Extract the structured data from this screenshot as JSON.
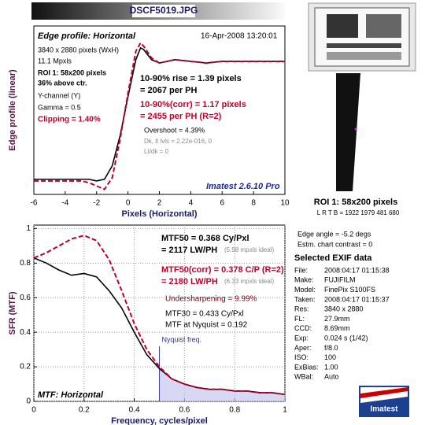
{
  "header": {
    "title": "DSCF5019.JPG"
  },
  "chart_data": [
    {
      "type": "line",
      "title": "Edge profile: Horizontal",
      "xlabel": "Pixels (Horizontal)",
      "ylabel": "Edge profile (linear)",
      "x": [
        -6,
        -5,
        -4,
        -3,
        -2.5,
        -2,
        -1.5,
        -1,
        -0.5,
        0,
        0.5,
        0.8,
        1,
        1.5,
        2,
        3,
        4,
        5,
        6,
        7,
        8,
        9,
        10
      ],
      "series": [
        {
          "color": "#000000",
          "dash": false,
          "values": [
            0.09,
            0.09,
            0.09,
            0.09,
            0.09,
            0.08,
            0.09,
            0.17,
            0.35,
            0.58,
            0.8,
            0.87,
            0.86,
            0.8,
            0.78,
            0.8,
            0.79,
            0.78,
            0.79,
            0.79,
            0.79,
            0.79,
            0.79
          ]
        },
        {
          "color": "#c0002a",
          "dash": true,
          "values": [
            0.08,
            0.08,
            0.08,
            0.08,
            0.07,
            0.05,
            0.03,
            0.1,
            0.33,
            0.6,
            0.85,
            0.9,
            0.88,
            0.81,
            0.78,
            0.8,
            0.79,
            0.78,
            0.79,
            0.79,
            0.79,
            0.79,
            0.79
          ]
        }
      ],
      "xlim": [
        -6,
        10
      ],
      "xticks": [
        -6,
        -4,
        -2,
        0,
        2,
        4,
        6,
        8,
        10
      ],
      "ylim": [
        0,
        1
      ],
      "grid": false,
      "annotations": [
        "16-Apr-2008 13:20:01",
        "3840 x 2880 pixels (WxH)",
        "11.1 Mpxls",
        "ROI 1:  58x200 pixels",
        "36% above ctr.",
        "Y-channel (Y)",
        "Gamma = 0.5",
        "Clipping =  1.40%",
        "10-90% rise = 1.39 pixels",
        "= 2067 per PH",
        "10-90%(corr) = 1.17 pixels",
        "= 2455 per PH  (R=2)",
        "Overshoot = 4.39%",
        "Dk, lt lvls = 2.22e-016, 0",
        "Lt/dk = 0",
        "Imatest 2.6.10 Pro"
      ]
    },
    {
      "type": "line",
      "title": "MTF: Horizontal",
      "xlabel": "Frequency, cycles/pixel",
      "ylabel": "SFR (MTF)",
      "x": [
        0,
        0.05,
        0.1,
        0.15,
        0.2,
        0.25,
        0.3,
        0.35,
        0.4,
        0.45,
        0.5,
        0.55,
        0.6,
        0.65,
        0.7,
        0.75,
        0.8,
        0.85,
        0.9,
        0.95,
        1
      ],
      "series": [
        {
          "color": "#000000",
          "dash": false,
          "values": [
            0.83,
            0.8,
            0.76,
            0.73,
            0.74,
            0.72,
            0.64,
            0.54,
            0.4,
            0.27,
            0.19,
            0.13,
            0.1,
            0.08,
            0.07,
            0.07,
            0.06,
            0.06,
            0.05,
            0.05,
            0.04
          ]
        },
        {
          "color": "#c0002a",
          "dash": true,
          "values": [
            0.83,
            0.86,
            0.9,
            0.94,
            0.96,
            0.93,
            0.82,
            0.64,
            0.45,
            0.3,
            0.2,
            0.13,
            0.1,
            0.08,
            0.07,
            0.07,
            0.06,
            0.06,
            0.05,
            0.05,
            0.04
          ]
        }
      ],
      "xlim": [
        0,
        1
      ],
      "xticks": [
        0,
        0.2,
        0.4,
        0.6,
        0.8,
        1
      ],
      "ylim": [
        0,
        1.02
      ],
      "yticks": [
        0,
        0.2,
        0.4,
        0.6,
        0.8,
        1
      ],
      "grid": true,
      "nyquist": 0.5,
      "nyquist_label": "Nyquist freq.",
      "annotations": [
        "MTF50 = 0.368 Cy/Pxl",
        "= 2117 LW/PH",
        "(5.98 mpxls ideal)",
        "MTF50(corr) = 0.378 C/P  (R=2)",
        "= 2180 LW/PH",
        "(6.33 mpxls ideal)",
        "Undersharpening = 9.99%",
        "MTF30 = 0.433 Cy/Pxl",
        "MTF at Nyquist = 0.192"
      ]
    }
  ],
  "roi": {
    "title": "ROI 1:  58x200 pixels",
    "bounds": "L R T B = 1922 1979  481 680",
    "edge_angle": "Edge angle = -5.2 degs",
    "contrast": "Estm. chart contrast = 0"
  },
  "exif": {
    "title": "Selected EXIF data",
    "rows": [
      [
        "File:",
        "2008:04:17 01:15:38"
      ],
      [
        "Make:",
        "FUJIFILM"
      ],
      [
        "Model:",
        "FinePix S100FS"
      ],
      [
        "Taken:",
        "2008:04:17 01:15:37"
      ],
      [
        "Res:",
        "3840 x 2880"
      ],
      [
        "FL:",
        "27.9mm"
      ],
      [
        "CCD:",
        "8.69mm"
      ],
      [
        "Exp:",
        "0.024 s (1/42)"
      ],
      [
        "Aper:",
        "f/8.0"
      ],
      [
        "ISO:",
        "100"
      ],
      [
        "ExBias:",
        "1.00"
      ],
      [
        "WBal:",
        "Auto"
      ]
    ]
  },
  "logo": "Imatest"
}
